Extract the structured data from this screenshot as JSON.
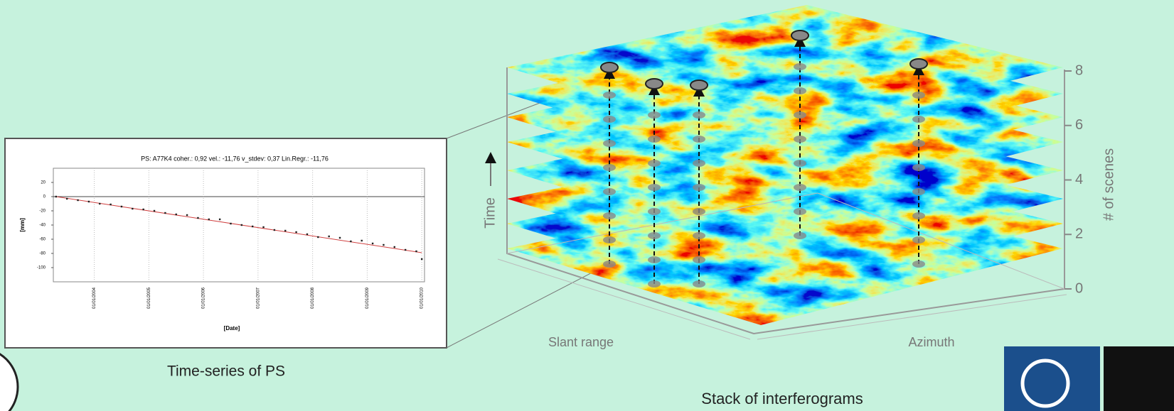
{
  "chart_data": {
    "type": "scatter",
    "title": "PS: A77K4 coher.: 0,92 vel.: -11,76 v_stdev: 0,37 Lin.Regr.: -11,76",
    "x_label": "[Date]",
    "y_label": "[mm]",
    "x": [
      2003.3,
      2003.5,
      2003.7,
      2003.9,
      2004.1,
      2004.3,
      2004.5,
      2004.7,
      2004.9,
      2005.1,
      2005.3,
      2005.5,
      2005.7,
      2005.9,
      2006.1,
      2006.3,
      2006.5,
      2006.7,
      2006.9,
      2007.1,
      2007.3,
      2007.5,
      2007.7,
      2007.9,
      2008.1,
      2008.3,
      2008.5,
      2008.7,
      2008.9,
      2009.1,
      2009.3,
      2009.5,
      2009.7,
      2009.9,
      2010.0
    ],
    "values": [
      0,
      -3,
      -5,
      -7,
      -10,
      -11,
      -14,
      -17,
      -18,
      -20,
      -23,
      -25,
      -26,
      -30,
      -32,
      -32,
      -38,
      -40,
      -42,
      -43,
      -47,
      -48,
      -50,
      -53,
      -57,
      -56,
      -58,
      -63,
      -62,
      -66,
      -68,
      -71,
      -75,
      -77,
      -88
    ],
    "color": "#222222",
    "fit": {
      "x": [
        2003.3,
        2010.0
      ],
      "values": [
        0,
        -79
      ],
      "color": "#d04040"
    },
    "xlim": [
      2003.25,
      2010.05
    ],
    "xticks": [
      {
        "value": 2004,
        "label": "01/01/2004"
      },
      {
        "value": 2005,
        "label": "01/01/2005"
      },
      {
        "value": 2006,
        "label": "01/01/2006"
      },
      {
        "value": 2007,
        "label": "01/01/2007"
      },
      {
        "value": 2008,
        "label": "01/01/2008"
      },
      {
        "value": 2009,
        "label": "01/01/2009"
      },
      {
        "value": 2010,
        "label": "01/01/2010"
      }
    ],
    "ylim": [
      -120,
      40
    ],
    "yticks": [
      20,
      0,
      -20,
      -40,
      -60,
      -80,
      -100
    ],
    "grid": true,
    "caption": "Time-series of PS"
  },
  "diagram": {
    "time_label": "Time",
    "x_label": "Slant range",
    "y_label": "Azimuth",
    "z_label": "# of scenes",
    "zlim": [
      0,
      8
    ],
    "zticks": [
      0,
      2,
      4,
      6,
      8
    ],
    "caption": "Stack of interferograms"
  }
}
